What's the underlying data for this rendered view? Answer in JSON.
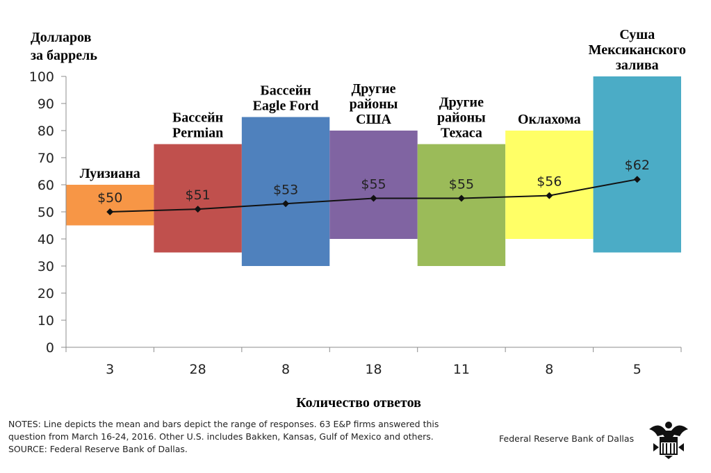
{
  "chart_data": {
    "type": "bar",
    "title": "",
    "ylabel_lines": [
      "Долларов",
      "за баррель"
    ],
    "xlabel": "Количество ответов",
    "ylim": [
      0,
      100
    ],
    "yticks": [
      "0",
      "10",
      "20",
      "30",
      "40",
      "50",
      "60",
      "70",
      "80",
      "90",
      "100"
    ],
    "regions": [
      {
        "label_lines": [
          "Луизиана"
        ],
        "responses": "3",
        "low": 45,
        "high": 60,
        "mean": 50,
        "mean_label": "$50",
        "color": "#F79646"
      },
      {
        "label_lines": [
          "Бассейн",
          "Permian"
        ],
        "responses": "28",
        "low": 35,
        "high": 75,
        "mean": 51,
        "mean_label": "$51",
        "color": "#C0504D"
      },
      {
        "label_lines": [
          "Бассейн",
          "Eagle Ford"
        ],
        "responses": "8",
        "low": 30,
        "high": 85,
        "mean": 53,
        "mean_label": "$53",
        "color": "#4F81BD"
      },
      {
        "label_lines": [
          "Другие",
          "районы",
          "США"
        ],
        "responses": "18",
        "low": 40,
        "high": 80,
        "mean": 55,
        "mean_label": "$55",
        "color": "#8064A2"
      },
      {
        "label_lines": [
          "Другие",
          "районы",
          "Техаса"
        ],
        "responses": "11",
        "low": 30,
        "high": 75,
        "mean": 55,
        "mean_label": "$55",
        "color": "#9BBB59"
      },
      {
        "label_lines": [
          "Оклахома"
        ],
        "responses": "8",
        "low": 40,
        "high": 80,
        "mean": 56,
        "mean_label": "$56",
        "color": "#FFFF66"
      },
      {
        "label_lines": [
          "Суша",
          "Мексиканского",
          "залива"
        ],
        "responses": "5",
        "low": 35,
        "high": 100,
        "mean": 62,
        "mean_label": "$62",
        "color": "#4BACC6"
      }
    ]
  },
  "notes": [
    "NOTES: Line depicts the mean and bars depict the range of responses. 63 E&P firms answered this",
    "question from March 16-24, 2016. Other U.S. includes Bakken, Kansas, Gulf of Mexico and others.",
    "SOURCE: Federal Reserve Bank of Dallas."
  ],
  "source_credit": "Federal Reserve Bank of Dallas",
  "icons": {
    "seal": "federal-reserve-seal-icon"
  }
}
